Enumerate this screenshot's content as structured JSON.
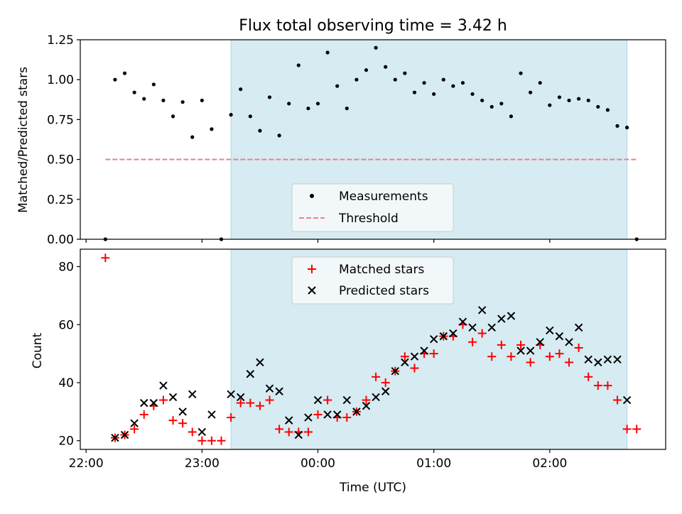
{
  "title": "Flux total observing time = 3.42 h",
  "chart_data": [
    {
      "type": "scatter",
      "name": "top",
      "ylabel": "Matched/Predicted stars",
      "ylim": [
        0,
        1.25
      ],
      "yticks": [
        "0.00",
        "0.25",
        "0.50",
        "0.75",
        "1.00",
        "1.25"
      ],
      "x_unit": "minutes after 22:00 UTC",
      "xlim": [
        -3,
        300
      ],
      "shaded_span": [
        75,
        280
      ],
      "threshold": {
        "name": "Threshold",
        "y": 0.5,
        "x_range": [
          10,
          285
        ],
        "color": "#f08080"
      },
      "series": [
        {
          "name": "Measurements",
          "color": "#000000",
          "points": [
            [
              10,
              0.0
            ],
            [
              15,
              1.0
            ],
            [
              20,
              1.04
            ],
            [
              25,
              0.92
            ],
            [
              30,
              0.88
            ],
            [
              35,
              0.97
            ],
            [
              40,
              0.87
            ],
            [
              45,
              0.77
            ],
            [
              50,
              0.86
            ],
            [
              55,
              0.64
            ],
            [
              60,
              0.87
            ],
            [
              65,
              0.69
            ],
            [
              70,
              0.0
            ],
            [
              75,
              0.78
            ],
            [
              80,
              0.94
            ],
            [
              85,
              0.77
            ],
            [
              90,
              0.68
            ],
            [
              95,
              0.89
            ],
            [
              100,
              0.65
            ],
            [
              105,
              0.85
            ],
            [
              110,
              1.09
            ],
            [
              115,
              0.82
            ],
            [
              120,
              0.85
            ],
            [
              125,
              1.17
            ],
            [
              130,
              0.96
            ],
            [
              135,
              0.82
            ],
            [
              140,
              1.0
            ],
            [
              145,
              1.06
            ],
            [
              150,
              1.2
            ],
            [
              155,
              1.08
            ],
            [
              160,
              1.0
            ],
            [
              165,
              1.04
            ],
            [
              170,
              0.92
            ],
            [
              175,
              0.98
            ],
            [
              180,
              0.91
            ],
            [
              185,
              1.0
            ],
            [
              190,
              0.96
            ],
            [
              195,
              0.98
            ],
            [
              200,
              0.91
            ],
            [
              205,
              0.87
            ],
            [
              210,
              0.83
            ],
            [
              215,
              0.85
            ],
            [
              220,
              0.77
            ],
            [
              225,
              1.04
            ],
            [
              230,
              0.92
            ],
            [
              235,
              0.98
            ],
            [
              240,
              0.84
            ],
            [
              245,
              0.89
            ],
            [
              250,
              0.87
            ],
            [
              255,
              0.88
            ],
            [
              260,
              0.87
            ],
            [
              265,
              0.83
            ],
            [
              270,
              0.81
            ],
            [
              275,
              0.71
            ],
            [
              280,
              0.7
            ],
            [
              285,
              0.0
            ]
          ]
        }
      ],
      "legend": [
        "Measurements",
        "Threshold"
      ]
    },
    {
      "type": "scatter",
      "name": "bottom",
      "xlabel": "Time (UTC)",
      "ylabel": "Count",
      "ylim": [
        17,
        86
      ],
      "yticks": [
        "20",
        "40",
        "60",
        "80"
      ],
      "x_unit": "minutes after 22:00 UTC",
      "xlim": [
        -3,
        300
      ],
      "xticks": [
        {
          "value": 0,
          "label": "22:00"
        },
        {
          "value": 60,
          "label": "23:00"
        },
        {
          "value": 120,
          "label": "00:00"
        },
        {
          "value": 180,
          "label": "01:00"
        },
        {
          "value": 240,
          "label": "02:00"
        }
      ],
      "shaded_span": [
        75,
        280
      ],
      "series": [
        {
          "name": "Matched stars",
          "marker": "+",
          "color": "#ff0000",
          "points": [
            [
              10,
              83
            ],
            [
              15,
              21
            ],
            [
              20,
              22
            ],
            [
              25,
              24
            ],
            [
              30,
              29
            ],
            [
              35,
              32
            ],
            [
              40,
              34
            ],
            [
              45,
              27
            ],
            [
              50,
              26
            ],
            [
              55,
              23
            ],
            [
              60,
              20
            ],
            [
              65,
              20
            ],
            [
              70,
              20
            ],
            [
              75,
              28
            ],
            [
              80,
              33
            ],
            [
              85,
              33
            ],
            [
              90,
              32
            ],
            [
              95,
              34
            ],
            [
              100,
              24
            ],
            [
              105,
              23
            ],
            [
              110,
              23
            ],
            [
              115,
              23
            ],
            [
              120,
              29
            ],
            [
              125,
              34
            ],
            [
              130,
              28
            ],
            [
              135,
              28
            ],
            [
              140,
              30
            ],
            [
              145,
              34
            ],
            [
              150,
              42
            ],
            [
              155,
              40
            ],
            [
              160,
              44
            ],
            [
              165,
              49
            ],
            [
              170,
              45
            ],
            [
              175,
              50
            ],
            [
              180,
              50
            ],
            [
              185,
              56
            ],
            [
              190,
              56
            ],
            [
              195,
              60
            ],
            [
              200,
              54
            ],
            [
              205,
              57
            ],
            [
              210,
              49
            ],
            [
              215,
              53
            ],
            [
              220,
              49
            ],
            [
              225,
              53
            ],
            [
              230,
              47
            ],
            [
              235,
              53
            ],
            [
              240,
              49
            ],
            [
              245,
              50
            ],
            [
              250,
              47
            ],
            [
              255,
              52
            ],
            [
              260,
              42
            ],
            [
              265,
              39
            ],
            [
              270,
              39
            ],
            [
              275,
              34
            ],
            [
              280,
              24
            ],
            [
              285,
              24
            ]
          ]
        },
        {
          "name": "Predicted stars",
          "marker": "x",
          "color": "#000000",
          "points": [
            [
              15,
              21
            ],
            [
              20,
              22
            ],
            [
              25,
              26
            ],
            [
              30,
              33
            ],
            [
              35,
              33
            ],
            [
              40,
              39
            ],
            [
              45,
              35
            ],
            [
              50,
              30
            ],
            [
              55,
              36
            ],
            [
              60,
              23
            ],
            [
              65,
              29
            ],
            [
              75,
              36
            ],
            [
              80,
              35
            ],
            [
              85,
              43
            ],
            [
              90,
              47
            ],
            [
              95,
              38
            ],
            [
              100,
              37
            ],
            [
              105,
              27
            ],
            [
              110,
              22
            ],
            [
              115,
              28
            ],
            [
              120,
              34
            ],
            [
              125,
              29
            ],
            [
              130,
              29
            ],
            [
              135,
              34
            ],
            [
              140,
              30
            ],
            [
              145,
              32
            ],
            [
              150,
              35
            ],
            [
              155,
              37
            ],
            [
              160,
              44
            ],
            [
              165,
              47
            ],
            [
              170,
              49
            ],
            [
              175,
              51
            ],
            [
              180,
              55
            ],
            [
              185,
              56
            ],
            [
              190,
              57
            ],
            [
              195,
              61
            ],
            [
              200,
              59
            ],
            [
              205,
              65
            ],
            [
              210,
              59
            ],
            [
              215,
              62
            ],
            [
              220,
              63
            ],
            [
              225,
              51
            ],
            [
              230,
              51
            ],
            [
              235,
              54
            ],
            [
              240,
              58
            ],
            [
              245,
              56
            ],
            [
              250,
              54
            ],
            [
              255,
              59
            ],
            [
              260,
              48
            ],
            [
              265,
              47
            ],
            [
              270,
              48
            ],
            [
              275,
              48
            ],
            [
              280,
              34
            ]
          ]
        }
      ],
      "legend": [
        "Matched stars",
        "Predicted stars"
      ]
    }
  ]
}
